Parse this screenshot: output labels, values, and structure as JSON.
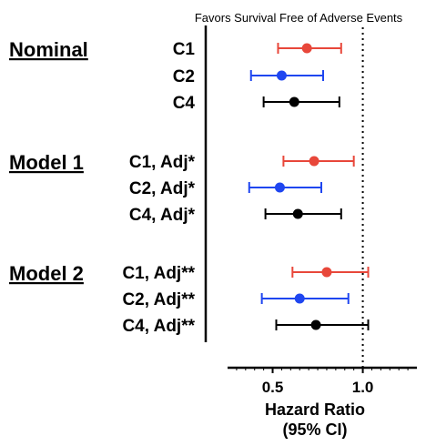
{
  "chart_data": {
    "type": "forest",
    "annotation": "Favors Survival Free of Adverse Events",
    "xlabel": "Hazard Ratio",
    "xlabel_sub": "(95% CI)",
    "xlim": [
      0.25,
      1.3
    ],
    "xticks": [
      0.5,
      1.0
    ],
    "xtick_labels": [
      "0.5",
      "1.0"
    ],
    "reference_line": 1.0,
    "colors": {
      "C1": "#e8473a",
      "C2": "#1f46f0",
      "C4": "#000000"
    },
    "groups": [
      {
        "name": "Nominal",
        "rows": [
          {
            "label": "C1",
            "series": "C1",
            "hr": 0.69,
            "lower": 0.53,
            "upper": 0.88
          },
          {
            "label": "C2",
            "series": "C2",
            "hr": 0.55,
            "lower": 0.38,
            "upper": 0.78
          },
          {
            "label": "C4",
            "series": "C4",
            "hr": 0.62,
            "lower": 0.45,
            "upper": 0.87
          }
        ]
      },
      {
        "name": "Model 1",
        "rows": [
          {
            "label": "C1, Adj*",
            "series": "C1",
            "hr": 0.73,
            "lower": 0.56,
            "upper": 0.95
          },
          {
            "label": "C2, Adj*",
            "series": "C2",
            "hr": 0.54,
            "lower": 0.37,
            "upper": 0.77
          },
          {
            "label": "C4, Adj*",
            "series": "C4",
            "hr": 0.64,
            "lower": 0.46,
            "upper": 0.88
          }
        ]
      },
      {
        "name": "Model 2",
        "rows": [
          {
            "label": "C1, Adj**",
            "series": "C1",
            "hr": 0.8,
            "lower": 0.61,
            "upper": 1.03
          },
          {
            "label": "C2, Adj**",
            "series": "C2",
            "hr": 0.65,
            "lower": 0.44,
            "upper": 0.92
          },
          {
            "label": "C4, Adj**",
            "series": "C4",
            "hr": 0.74,
            "lower": 0.52,
            "upper": 1.03
          }
        ]
      }
    ]
  }
}
